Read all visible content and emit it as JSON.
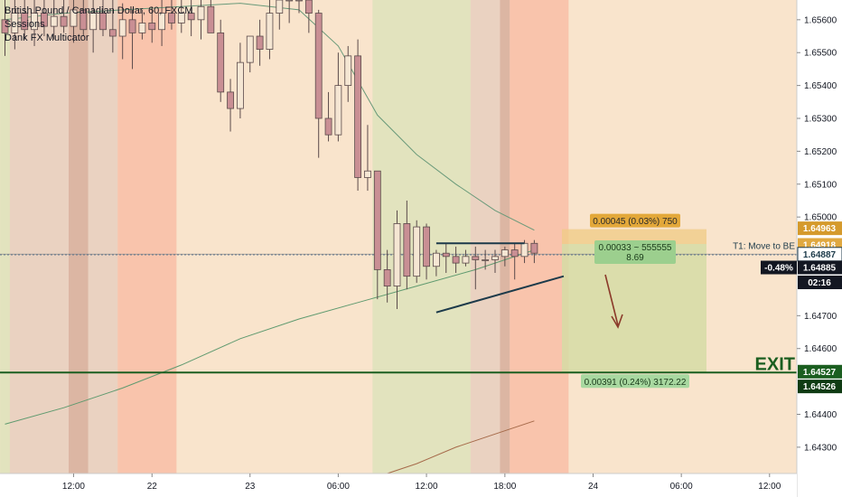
{
  "legend": {
    "title": "British Pound / Canadian Dollar, 60, FXCM",
    "line2": "Sessions",
    "line3": "Dank FX Multicator"
  },
  "colors": {
    "up_candle": "#f5e6d3",
    "down_candle": "#c98f94",
    "candle_border": "#5a4a4a",
    "session_asia": "#e8cfc0",
    "session_london": "#dfe2bd",
    "session_ny": "#f8c0a8",
    "background": "#f9e4cc",
    "exit_line": "#1b5e20",
    "trend_line": "#1c3a4a",
    "ma_line": "#6a9a7a",
    "target_zone": "#d6dca5",
    "stop_zone": "#f0cc88"
  },
  "chart_data": {
    "type": "candlestick",
    "symbol": "British Pound / Canadian Dollar",
    "interval": "60",
    "ylim": [
      1.6422,
      1.6566
    ],
    "y_ticks": [
      "1.65600",
      "1.65500",
      "1.65400",
      "1.65300",
      "1.65200",
      "1.65100",
      "1.65000",
      "1.64700",
      "1.64600",
      "1.64400",
      "1.64300"
    ],
    "x_ticks": [
      "12:00",
      "22",
      "23",
      "06:00",
      "12:00",
      "18:00",
      "24",
      "06:00",
      "12:00"
    ],
    "candles": [
      {
        "o": 1.656,
        "h": 1.6566,
        "l": 1.6549,
        "c": 1.6556
      },
      {
        "o": 1.6556,
        "h": 1.6566,
        "l": 1.6551,
        "c": 1.6562
      },
      {
        "o": 1.6562,
        "h": 1.6566,
        "l": 1.6554,
        "c": 1.6557
      },
      {
        "o": 1.6557,
        "h": 1.6566,
        "l": 1.6552,
        "c": 1.6562
      },
      {
        "o": 1.6562,
        "h": 1.6566,
        "l": 1.6555,
        "c": 1.6558
      },
      {
        "o": 1.6558,
        "h": 1.6566,
        "l": 1.6554,
        "c": 1.6561
      },
      {
        "o": 1.6561,
        "h": 1.6566,
        "l": 1.6556,
        "c": 1.6558
      },
      {
        "o": 1.6558,
        "h": 1.6566,
        "l": 1.6553,
        "c": 1.6563
      },
      {
        "o": 1.6563,
        "h": 1.6566,
        "l": 1.6555,
        "c": 1.6557
      },
      {
        "o": 1.6557,
        "h": 1.6566,
        "l": 1.655,
        "c": 1.6562
      },
      {
        "o": 1.6562,
        "h": 1.6566,
        "l": 1.6555,
        "c": 1.6557
      },
      {
        "o": 1.6557,
        "h": 1.6566,
        "l": 1.655,
        "c": 1.6555
      },
      {
        "o": 1.6555,
        "h": 1.6565,
        "l": 1.6548,
        "c": 1.656
      },
      {
        "o": 1.656,
        "h": 1.6563,
        "l": 1.6545,
        "c": 1.6556
      },
      {
        "o": 1.6556,
        "h": 1.6563,
        "l": 1.6554,
        "c": 1.6559
      },
      {
        "o": 1.6559,
        "h": 1.6564,
        "l": 1.6553,
        "c": 1.6557
      },
      {
        "o": 1.6557,
        "h": 1.6566,
        "l": 1.6552,
        "c": 1.6562
      },
      {
        "o": 1.6562,
        "h": 1.6566,
        "l": 1.6557,
        "c": 1.6559
      },
      {
        "o": 1.6559,
        "h": 1.6566,
        "l": 1.6556,
        "c": 1.6562
      },
      {
        "o": 1.6562,
        "h": 1.6566,
        "l": 1.6555,
        "c": 1.656
      },
      {
        "o": 1.656,
        "h": 1.6566,
        "l": 1.6554,
        "c": 1.6564
      },
      {
        "o": 1.6564,
        "h": 1.6566,
        "l": 1.6556,
        "c": 1.6556
      },
      {
        "o": 1.6556,
        "h": 1.656,
        "l": 1.6535,
        "c": 1.6538
      },
      {
        "o": 1.6538,
        "h": 1.6542,
        "l": 1.6526,
        "c": 1.6533
      },
      {
        "o": 1.6533,
        "h": 1.6553,
        "l": 1.653,
        "c": 1.6547
      },
      {
        "o": 1.6547,
        "h": 1.6555,
        "l": 1.6544,
        "c": 1.6555
      },
      {
        "o": 1.6555,
        "h": 1.656,
        "l": 1.6546,
        "c": 1.6551
      },
      {
        "o": 1.6551,
        "h": 1.6566,
        "l": 1.6548,
        "c": 1.6562
      },
      {
        "o": 1.6562,
        "h": 1.6566,
        "l": 1.6557,
        "c": 1.6566
      },
      {
        "o": 1.6566,
        "h": 1.6566,
        "l": 1.6559,
        "c": 1.6566
      },
      {
        "o": 1.6566,
        "h": 1.6566,
        "l": 1.6562,
        "c": 1.6566
      },
      {
        "o": 1.6566,
        "h": 1.6566,
        "l": 1.6556,
        "c": 1.6562
      },
      {
        "o": 1.6562,
        "h": 1.6563,
        "l": 1.6518,
        "c": 1.653
      },
      {
        "o": 1.653,
        "h": 1.6538,
        "l": 1.6523,
        "c": 1.6525
      },
      {
        "o": 1.6525,
        "h": 1.655,
        "l": 1.6523,
        "c": 1.654
      },
      {
        "o": 1.654,
        "h": 1.6552,
        "l": 1.6535,
        "c": 1.6549
      },
      {
        "o": 1.6549,
        "h": 1.6554,
        "l": 1.6508,
        "c": 1.6512
      },
      {
        "o": 1.6512,
        "h": 1.6528,
        "l": 1.6508,
        "c": 1.6514
      },
      {
        "o": 1.6514,
        "h": 1.6514,
        "l": 1.6475,
        "c": 1.6484
      },
      {
        "o": 1.6484,
        "h": 1.649,
        "l": 1.6474,
        "c": 1.6479
      },
      {
        "o": 1.6479,
        "h": 1.6502,
        "l": 1.6472,
        "c": 1.6498
      },
      {
        "o": 1.6498,
        "h": 1.6505,
        "l": 1.6478,
        "c": 1.6482
      },
      {
        "o": 1.6482,
        "h": 1.6499,
        "l": 1.648,
        "c": 1.6497
      },
      {
        "o": 1.6497,
        "h": 1.6498,
        "l": 1.6481,
        "c": 1.6485
      },
      {
        "o": 1.6485,
        "h": 1.649,
        "l": 1.6482,
        "c": 1.6489
      },
      {
        "o": 1.6489,
        "h": 1.6492,
        "l": 1.6483,
        "c": 1.6488
      },
      {
        "o": 1.6488,
        "h": 1.6491,
        "l": 1.6483,
        "c": 1.6486
      },
      {
        "o": 1.6486,
        "h": 1.649,
        "l": 1.6485,
        "c": 1.6488
      },
      {
        "o": 1.6488,
        "h": 1.6491,
        "l": 1.6478,
        "c": 1.6487
      },
      {
        "o": 1.6487,
        "h": 1.649,
        "l": 1.6484,
        "c": 1.6487
      },
      {
        "o": 1.6487,
        "h": 1.649,
        "l": 1.6483,
        "c": 1.6488
      },
      {
        "o": 1.6488,
        "h": 1.6491,
        "l": 1.6485,
        "c": 1.649
      },
      {
        "o": 1.649,
        "h": 1.6492,
        "l": 1.6481,
        "c": 1.6488
      },
      {
        "o": 1.6488,
        "h": 1.6493,
        "l": 1.6486,
        "c": 1.6492
      },
      {
        "o": 1.6492,
        "h": 1.6493,
        "l": 1.6486,
        "c": 1.6489
      }
    ],
    "moving_averages": [
      {
        "points": [
          [
            0,
            1.656
          ],
          [
            6,
            1.6562
          ],
          [
            12,
            1.6563
          ],
          [
            18,
            1.6564
          ],
          [
            24,
            1.6565
          ],
          [
            30,
            1.6563
          ],
          [
            34,
            1.6552
          ],
          [
            38,
            1.6531
          ],
          [
            42,
            1.6519
          ],
          [
            46,
            1.651
          ],
          [
            50,
            1.6502
          ],
          [
            54,
            1.6496
          ]
        ]
      },
      {
        "points": [
          [
            0,
            1.6437
          ],
          [
            6,
            1.6442
          ],
          [
            12,
            1.6448
          ],
          [
            18,
            1.6455
          ],
          [
            24,
            1.6463
          ],
          [
            30,
            1.6469
          ],
          [
            36,
            1.6474
          ],
          [
            42,
            1.6479
          ],
          [
            48,
            1.6484
          ],
          [
            54,
            1.649
          ]
        ]
      },
      {
        "points": [
          [
            34,
            1.6417
          ],
          [
            38,
            1.6421
          ],
          [
            42,
            1.6425
          ],
          [
            46,
            1.643
          ],
          [
            50,
            1.6434
          ],
          [
            54,
            1.6438
          ]
        ]
      }
    ],
    "sessions": [
      {
        "type": "london",
        "from": 0,
        "to": 1
      },
      {
        "type": "asia",
        "from": 1,
        "to": 7
      },
      {
        "type": "asia_dark",
        "from": 7,
        "to": 9
      },
      {
        "type": "asia",
        "from": 9,
        "to": 12
      },
      {
        "type": "ny",
        "from": 12,
        "to": 18
      },
      {
        "type": "london",
        "from": 38,
        "to": 48
      },
      {
        "type": "asia",
        "from": 48,
        "to": 51
      },
      {
        "type": "asia_dark",
        "from": 51,
        "to": 52
      },
      {
        "type": "ny",
        "from": 52,
        "to": 58
      }
    ],
    "horizontal_lines": [
      {
        "value": 1.64527,
        "label": "EXIT",
        "role": "exit"
      },
      {
        "value": 1.64887,
        "label": "T1:  Move to BE",
        "role": "t1"
      },
      {
        "value": 1.64885,
        "role": "last_price"
      }
    ],
    "trend_lines": [
      {
        "from": [
          44,
          1.6492
        ],
        "to": [
          53,
          1.6492
        ]
      },
      {
        "from": [
          44,
          1.6471
        ],
        "to": [
          57,
          1.6482
        ]
      }
    ],
    "position": {
      "entry": 1.64918,
      "stop": 1.64963,
      "target": 1.64527,
      "stop_label": "0.00045 (0.03%) 750",
      "target_label": "0.00391 (0.24%) 3172.22",
      "center_label_1": "0.00033 ~ 555555",
      "center_label_2": "8.69"
    },
    "price_badges": [
      {
        "value": 1.64963,
        "text": "1.64963",
        "style": "stop"
      },
      {
        "value": 1.64918,
        "text": "1.64918",
        "style": "entry"
      },
      {
        "value": 1.64887,
        "text": "1.64887",
        "style": "t1"
      },
      {
        "value": 1.64885,
        "text": "1.64885",
        "style": "last"
      },
      {
        "value": 1.64527,
        "text": "1.64527",
        "style": "exit"
      },
      {
        "value": 1.64526,
        "text": "1.64526",
        "style": "exit_dark"
      }
    ],
    "change_badge": "-0.48%",
    "countdown": "02:16"
  }
}
